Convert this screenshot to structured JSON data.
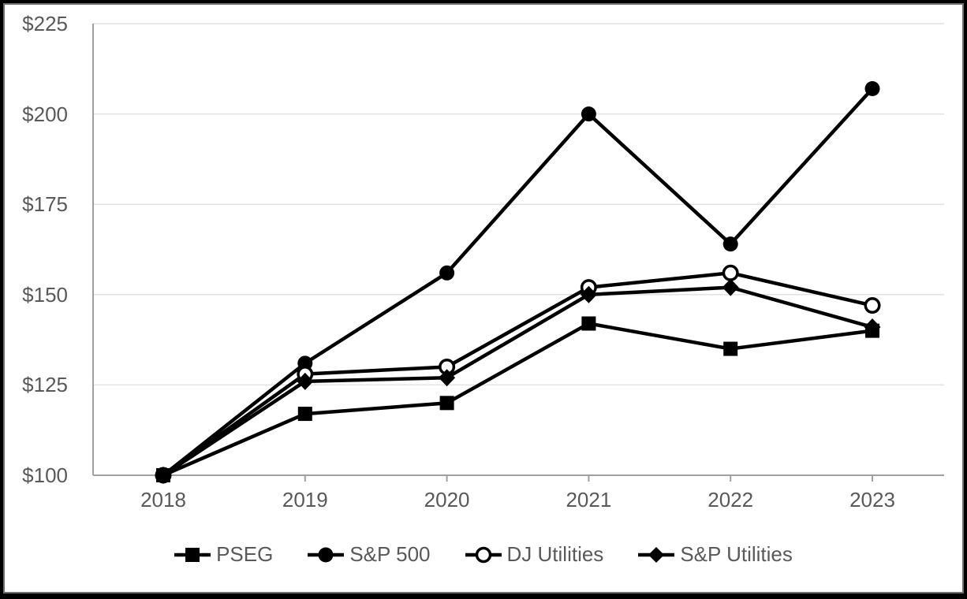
{
  "chart_data": {
    "type": "line",
    "x_labels": [
      "2018",
      "2019",
      "2020",
      "2021",
      "2022",
      "2023"
    ],
    "y_tick_labels": [
      "$100",
      "$125",
      "$150",
      "$175",
      "$200",
      "$225"
    ],
    "y_tick_values": [
      100,
      125,
      150,
      175,
      200,
      225
    ],
    "ylim": [
      100,
      225
    ],
    "grid": true,
    "legend_position": "bottom",
    "series": [
      {
        "name": "PSEG",
        "marker": "filled-square",
        "color": "#000000",
        "values": [
          100,
          117,
          120,
          142,
          135,
          140
        ]
      },
      {
        "name": "S&P 500",
        "marker": "filled-circle",
        "color": "#000000",
        "values": [
          100,
          131,
          156,
          200,
          164,
          207
        ]
      },
      {
        "name": "DJ Utilities",
        "marker": "open-circle",
        "color": "#000000",
        "values": [
          100,
          128,
          130,
          152,
          156,
          147
        ]
      },
      {
        "name": "S&P Utilities",
        "marker": "filled-diamond",
        "color": "#000000",
        "values": [
          100,
          126,
          127,
          150,
          152,
          141
        ]
      }
    ]
  },
  "colors": {
    "series": "#000000",
    "axis": "#a0a0a0",
    "gridline": "#e2e2e2",
    "tick_label": "#595959",
    "open_marker_fill": "#ffffff",
    "frame": "#000000"
  }
}
